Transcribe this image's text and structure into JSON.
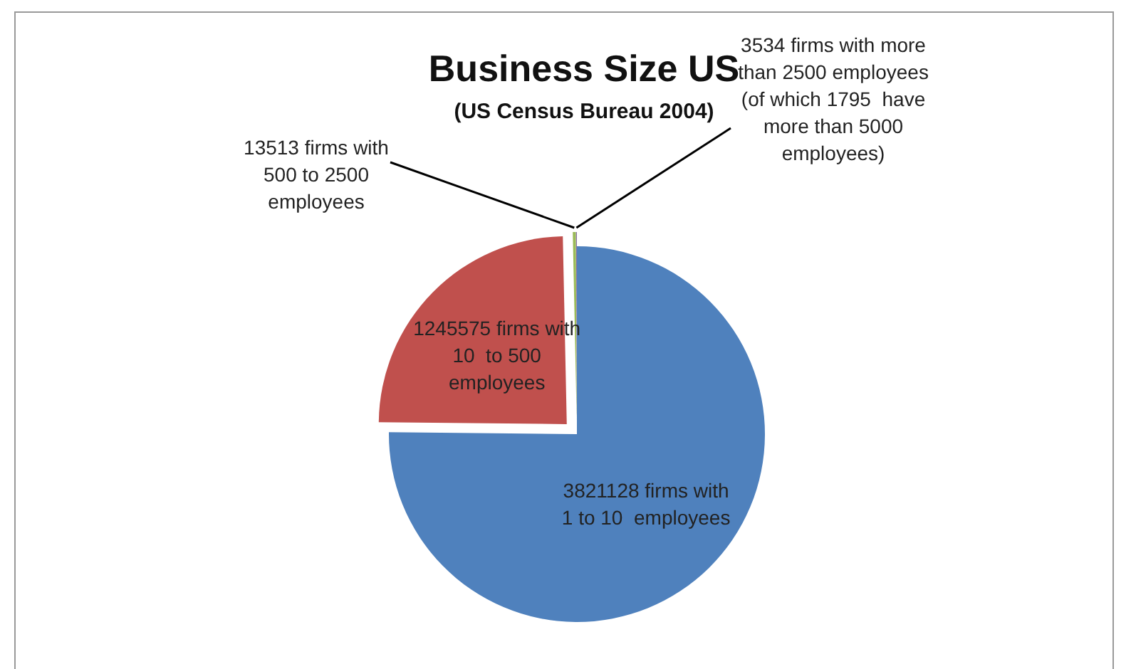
{
  "chart_data": {
    "type": "pie",
    "title": "Business Size US",
    "subtitle": "(US Census Bureau 2004)",
    "categories": [
      "3821128 firms with\n1 to 10  employees",
      "1245575 firms with\n10  to 500\nemployees",
      "13513 firms with\n500 to 2500\nemployees",
      "3534 firms with more\nthan 2500 employees\n(of which 1795  have\nmore than 5000\nemployees)"
    ],
    "values": [
      3821128,
      1245575,
      13513,
      3534
    ],
    "colors": [
      "#4f81bd",
      "#c0504d",
      "#9bbb59",
      "#8064a2"
    ]
  }
}
